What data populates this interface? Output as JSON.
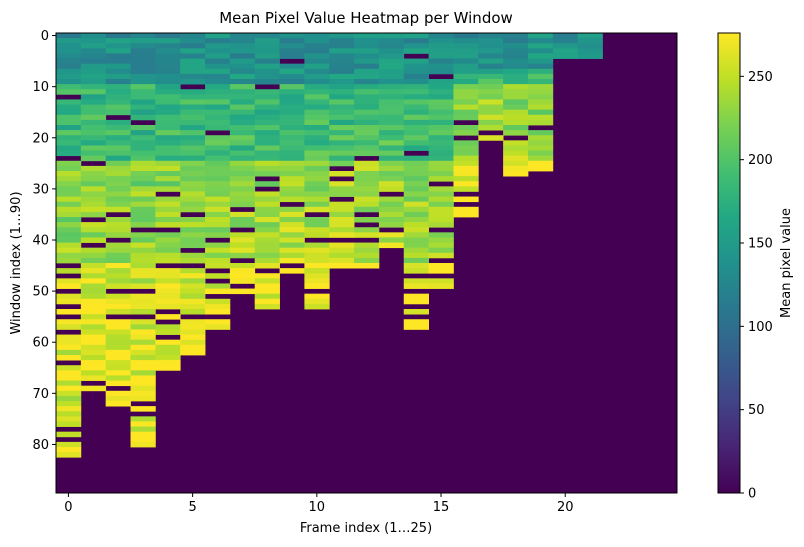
{
  "chart_data": {
    "type": "heatmap",
    "title": "Mean Pixel Value Heatmap per Window",
    "xlabel": "Frame index (1…25)",
    "ylabel": "Window index (1…90)",
    "colorbar_label": "Mean pixel value",
    "colormap": "viridis",
    "x_ticks": [
      0,
      5,
      10,
      15,
      20
    ],
    "y_ticks": [
      0,
      10,
      20,
      30,
      40,
      50,
      60,
      70,
      80
    ],
    "colorbar_ticks": [
      0,
      50,
      100,
      150,
      200,
      250
    ],
    "xlim": [
      -0.5,
      24.5
    ],
    "ylim": [
      89.5,
      -0.5
    ],
    "vmin": 0,
    "vmax": 276,
    "n_frames": 25,
    "n_windows": 90,
    "valid_rows_per_frame": [
      83,
      70,
      73,
      81,
      66,
      63,
      58,
      51,
      54,
      47,
      54,
      46,
      46,
      42,
      58,
      50,
      36,
      21,
      28,
      27,
      5,
      5,
      0,
      0,
      0
    ],
    "value_profile_by_band": {
      "frame_columns": "0..21",
      "note": "values rise from ~130-160 in windows 0-10 to ~230-270 near the lower edge of each column; gaps (0) appear as dark stripes",
      "band_0_10": 150,
      "band_10_25": 190,
      "band_25_45": 225,
      "band_45_70": 245,
      "band_70_85": 235
    },
    "zero_rows": {
      "0": [
        12,
        24,
        45,
        47,
        50,
        53,
        55,
        58,
        64,
        77,
        79
      ],
      "1": [
        25,
        36,
        41,
        68
      ],
      "2": [
        16,
        35,
        40,
        50,
        55,
        69
      ],
      "3": [
        17,
        38,
        50,
        55,
        72,
        74
      ],
      "4": [
        31,
        38,
        45,
        54,
        56,
        59
      ],
      "5": [
        10,
        35,
        42,
        45,
        55
      ],
      "6": [
        19,
        40,
        46,
        48,
        51,
        55
      ],
      "7": [
        34,
        38,
        44,
        49
      ],
      "8": [
        10,
        28,
        30,
        46
      ],
      "9": [
        5,
        33,
        45
      ],
      "10": [
        35,
        40,
        50
      ],
      "11": [
        26,
        28,
        32,
        40
      ],
      "12": [
        24,
        35,
        37,
        40
      ],
      "13": [
        31,
        38
      ],
      "14": [
        4,
        23,
        47,
        50,
        53,
        55
      ],
      "15": [
        8,
        29,
        38,
        44,
        47
      ],
      "16": [
        17,
        20,
        31,
        33
      ],
      "17": [
        19
      ],
      "18": [
        20
      ],
      "19": [
        18
      ]
    }
  }
}
